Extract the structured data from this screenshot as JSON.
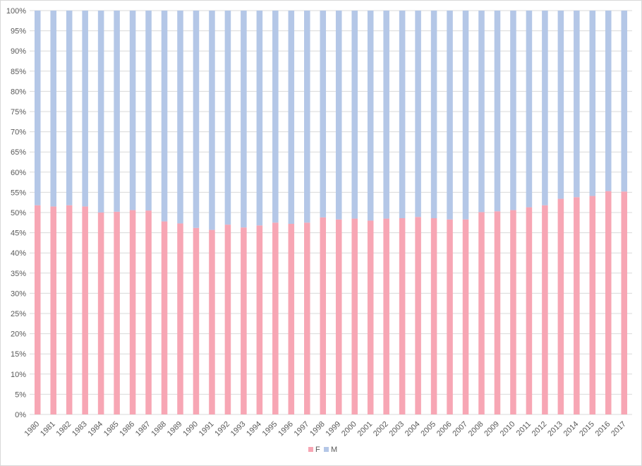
{
  "chart_data": {
    "type": "bar",
    "stacked": true,
    "percent_stacked": true,
    "title": "",
    "xlabel": "",
    "ylabel": "",
    "ylim": [
      0,
      100
    ],
    "yticks": [
      "0%",
      "5%",
      "10%",
      "15%",
      "20%",
      "25%",
      "30%",
      "35%",
      "40%",
      "45%",
      "50%",
      "55%",
      "60%",
      "65%",
      "70%",
      "75%",
      "80%",
      "85%",
      "90%",
      "95%",
      "100%"
    ],
    "grid": true,
    "legend_position": "bottom",
    "categories": [
      "1980",
      "1981",
      "1982",
      "1983",
      "1984",
      "1985",
      "1986",
      "1987",
      "1988",
      "1989",
      "1990",
      "1991",
      "1992",
      "1993",
      "1994",
      "1995",
      "1996",
      "1997",
      "1998",
      "1999",
      "2000",
      "2001",
      "2002",
      "2003",
      "2004",
      "2005",
      "2006",
      "2007",
      "2008",
      "2009",
      "2010",
      "2011",
      "2012",
      "2013",
      "2014",
      "2015",
      "2016",
      "2017"
    ],
    "series": [
      {
        "name": "F",
        "color": "#f7a6b4",
        "values": [
          51.8,
          51.5,
          51.8,
          51.5,
          50.0,
          50.2,
          50.6,
          50.5,
          47.8,
          47.3,
          46.2,
          45.7,
          47.0,
          46.3,
          46.8,
          47.5,
          47.2,
          47.5,
          48.8,
          48.3,
          48.5,
          48.0,
          48.5,
          48.6,
          48.9,
          48.6,
          48.3,
          48.3,
          50.1,
          50.3,
          50.6,
          51.3,
          51.8,
          53.4,
          53.8,
          54.1,
          55.3,
          55.2
        ]
      },
      {
        "name": "M",
        "color": "#b4c7e7",
        "values": [
          48.2,
          48.5,
          48.2,
          48.5,
          50.0,
          49.8,
          49.4,
          49.5,
          52.2,
          52.7,
          53.8,
          54.3,
          53.0,
          53.7,
          53.2,
          52.5,
          52.8,
          52.5,
          51.2,
          51.7,
          51.5,
          52.0,
          51.5,
          51.4,
          51.1,
          51.4,
          51.7,
          51.7,
          49.9,
          49.7,
          49.4,
          48.7,
          48.2,
          46.6,
          46.2,
          45.9,
          44.7,
          44.8
        ]
      }
    ]
  }
}
